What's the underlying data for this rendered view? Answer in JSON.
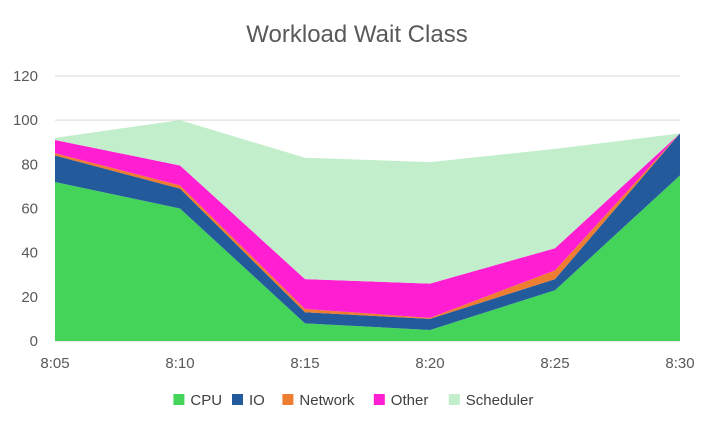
{
  "chart_data": {
    "type": "area",
    "stacked": true,
    "title": "Workload Wait Class",
    "xlabel": "",
    "ylabel": "",
    "categories": [
      "8:05",
      "8:10",
      "8:15",
      "8:20",
      "8:25",
      "8:30"
    ],
    "ylim": [
      0,
      120
    ],
    "yticks": [
      0,
      20,
      40,
      60,
      80,
      100,
      120
    ],
    "grid": true,
    "legend": "bottom",
    "series": [
      {
        "name": "CPU",
        "color": "#45d45a",
        "values": [
          72,
          60,
          8,
          5,
          23,
          75
        ]
      },
      {
        "name": "IO",
        "color": "#235a9c",
        "values": [
          12,
          9,
          5,
          5,
          5,
          19
        ]
      },
      {
        "name": "Network",
        "color": "#ed7d31",
        "values": [
          1,
          1.5,
          1.5,
          0.5,
          4,
          0
        ]
      },
      {
        "name": "Other",
        "color": "#ff1ed2",
        "values": [
          6,
          9,
          13.5,
          15.5,
          10,
          0
        ]
      },
      {
        "name": "Scheduler",
        "color": "#c2eecb",
        "values": [
          1,
          20.5,
          55,
          55,
          45,
          0
        ]
      }
    ]
  }
}
